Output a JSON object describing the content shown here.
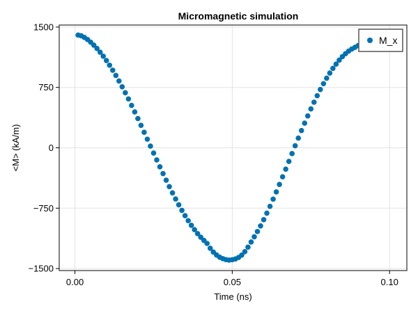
{
  "chart_data": {
    "type": "scatter",
    "title": "Micromagnetic simulation",
    "xlabel": "Time (ns)",
    "ylabel": "<M> (kA/m)",
    "xlim": [
      -0.005,
      0.1055
    ],
    "ylim": [
      -1525,
      1525
    ],
    "xticks": [
      0.0,
      0.05,
      0.1
    ],
    "xtick_labels": [
      "0.00",
      "0.05",
      "0.10"
    ],
    "yticks": [
      -1500,
      -750,
      0,
      750,
      1500
    ],
    "ytick_labels": [
      "−1500",
      "−750",
      "0",
      "750",
      "1500"
    ],
    "grid": true,
    "legend": {
      "position": "top-right",
      "entries": [
        "M_x"
      ]
    },
    "series": [
      {
        "name": "M_x",
        "color": "#0072b2",
        "x": [
          0.001,
          0.002,
          0.003,
          0.004,
          0.005,
          0.006,
          0.007,
          0.008,
          0.009,
          0.01,
          0.011,
          0.012,
          0.013,
          0.014,
          0.015,
          0.016,
          0.017,
          0.018,
          0.019,
          0.02,
          0.021,
          0.022,
          0.023,
          0.024,
          0.025,
          0.026,
          0.027,
          0.028,
          0.029,
          0.03,
          0.031,
          0.032,
          0.033,
          0.034,
          0.035,
          0.036,
          0.037,
          0.038,
          0.039,
          0.04,
          0.041,
          0.042,
          0.043,
          0.044,
          0.045,
          0.046,
          0.047,
          0.048,
          0.049,
          0.05,
          0.051,
          0.052,
          0.053,
          0.054,
          0.055,
          0.056,
          0.057,
          0.058,
          0.059,
          0.06,
          0.061,
          0.062,
          0.063,
          0.064,
          0.065,
          0.066,
          0.067,
          0.068,
          0.069,
          0.07,
          0.071,
          0.072,
          0.073,
          0.074,
          0.075,
          0.076,
          0.077,
          0.078,
          0.079,
          0.08,
          0.081,
          0.082,
          0.083,
          0.084,
          0.085,
          0.086,
          0.087,
          0.088,
          0.089,
          0.09,
          0.091,
          0.092,
          0.093,
          0.094,
          0.095,
          0.096,
          0.097,
          0.098,
          0.099,
          0.1,
          0.101
        ],
        "y": [
          1400,
          1392,
          1371,
          1345,
          1312,
          1275,
          1234,
          1188,
          1138,
          1084,
          1026,
          964,
          899,
          830,
          758,
          684,
          607,
          527,
          446,
          363,
          279,
          193,
          107,
          21,
          -65,
          -151,
          -236,
          -320,
          -402,
          -482,
          -560,
          -636,
          -708,
          -777,
          -843,
          -905,
          -963,
          -1017,
          -1066,
          -1111,
          -1151,
          -1188,
          -1248,
          -1295,
          -1331,
          -1359,
          -1377,
          -1389,
          -1395,
          -1390,
          -1381,
          -1362,
          -1333,
          -1290,
          -1234,
          -1170,
          -1105,
          -1040,
          -970,
          -893,
          -812,
          -727,
          -638,
          -548,
          -455,
          -360,
          -265,
          -169,
          -72,
          25,
          120,
          214,
          306,
          396,
          483,
          567,
          647,
          724,
          797,
          865,
          928,
          987,
          1040,
          1089,
          1132,
          1169,
          1201,
          1227,
          1248,
          1270,
          1300,
          1330,
          1355,
          1374,
          1388,
          1395,
          1397,
          1393,
          1385,
          1368,
          1345
        ]
      }
    ]
  }
}
